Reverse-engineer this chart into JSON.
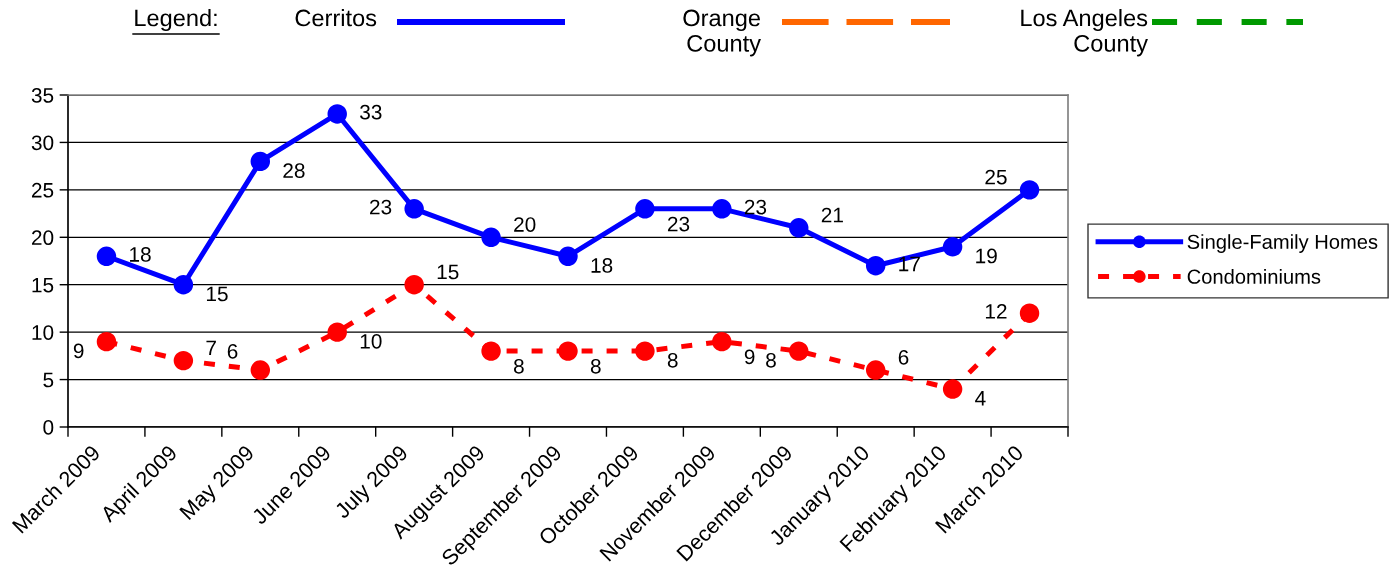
{
  "chart_data": {
    "type": "line",
    "categories": [
      "March 2009",
      "April 2009",
      "May 2009",
      "June 2009",
      "July 2009",
      "August 2009",
      "September 2009",
      "October 2009",
      "November 2009",
      "December 2009",
      "January 2010",
      "February 2010",
      "March 2010"
    ],
    "series": [
      {
        "name": "Single-Family Homes",
        "color": "#0000ff",
        "line_style": "solid",
        "values": [
          18,
          15,
          28,
          33,
          23,
          20,
          18,
          23,
          23,
          21,
          17,
          19,
          25
        ]
      },
      {
        "name": "Condominiums",
        "color": "#ff0000",
        "line_style": "dashed",
        "values": [
          9,
          7,
          6,
          10,
          15,
          8,
          8,
          8,
          9,
          8,
          6,
          4,
          12
        ]
      }
    ],
    "ylim": [
      0,
      35
    ],
    "yticks": [
      0,
      5,
      10,
      15,
      20,
      25,
      30,
      35
    ],
    "grid": "y",
    "legend": "right",
    "marker": "circle",
    "data_labels": true,
    "annotations": [
      "Legend:",
      "Cerritos",
      "Orange County",
      "Los Angeles County"
    ]
  }
}
